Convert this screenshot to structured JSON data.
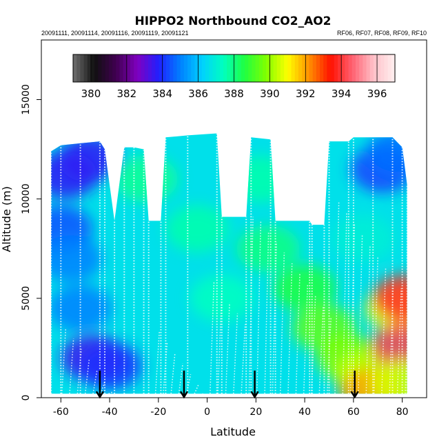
{
  "chart_data": {
    "type": "heatmap",
    "title": "HIPPO2 Northbound CO2_AO2",
    "subtitle_left": "20091111, 20091114, 20091116, 20091119, 20091121",
    "subtitle_right": "RF06, RF07, RF08, RF09, RF10",
    "xlabel": "Latitude",
    "ylabel": "Altitude (m)",
    "xlim": [
      -68,
      90
    ],
    "ylim": [
      0,
      18000
    ],
    "x_ticks": [
      "-60",
      "-40",
      "-20",
      "0",
      "20",
      "40",
      "60",
      "80"
    ],
    "x_tick_values": [
      -60,
      -40,
      -20,
      0,
      20,
      40,
      60,
      80
    ],
    "y_ticks": [
      "0",
      "5000",
      "10000",
      "15000"
    ],
    "y_tick_values": [
      0,
      5000,
      10000,
      15000
    ],
    "colorbar": {
      "min": 379,
      "max": 397,
      "ticks": [
        "380",
        "382",
        "384",
        "386",
        "388",
        "390",
        "392",
        "394",
        "396"
      ],
      "tick_values": [
        380,
        382,
        384,
        386,
        388,
        390,
        392,
        394,
        396
      ],
      "colors": [
        "#707070",
        "#101010",
        "#400050",
        "#8000c0",
        "#2020ff",
        "#0080ff",
        "#00d0ff",
        "#00ffc0",
        "#20ff40",
        "#80ff00",
        "#ffff00",
        "#ff9000",
        "#ff1000",
        "#ff6070",
        "#ffc0c8",
        "#fff0f0"
      ]
    },
    "flight_markers_latitude": [
      -44,
      -9.5,
      19.5,
      60.5
    ],
    "curtain_top_profile": [
      [
        -64,
        12400
      ],
      [
        -60,
        12700
      ],
      [
        -52,
        12800
      ],
      [
        -44,
        12900
      ],
      [
        -42,
        12500
      ],
      [
        -38,
        8900
      ],
      [
        -34,
        12600
      ],
      [
        -30,
        12600
      ],
      [
        -26,
        12500
      ],
      [
        -24,
        8900
      ],
      [
        -19,
        8900
      ],
      [
        -17,
        13100
      ],
      [
        -8,
        13200
      ],
      [
        4,
        13300
      ],
      [
        6,
        9100
      ],
      [
        16,
        9100
      ],
      [
        18,
        13100
      ],
      [
        26,
        13000
      ],
      [
        28,
        8900
      ],
      [
        42,
        8900
      ],
      [
        43,
        8700
      ],
      [
        48,
        8700
      ],
      [
        50,
        12900
      ],
      [
        58,
        12900
      ],
      [
        60,
        13100
      ],
      [
        68,
        13100
      ],
      [
        76,
        13100
      ],
      [
        80,
        12600
      ],
      [
        82,
        10700
      ]
    ],
    "patches": [
      {
        "lat": -58,
        "alt": 11200,
        "value": 383.6
      },
      {
        "lat": -48,
        "alt": 12000,
        "value": 383.6
      },
      {
        "lat": -60,
        "alt": 8500,
        "value": 384.4
      },
      {
        "lat": -56,
        "alt": 7000,
        "value": 385.0
      },
      {
        "lat": -47,
        "alt": 2000,
        "value": 383.4
      },
      {
        "lat": -40,
        "alt": 1600,
        "value": 384.0
      },
      {
        "lat": -52,
        "alt": 4500,
        "value": 385.0
      },
      {
        "lat": 72,
        "alt": 11500,
        "value": 384.2
      },
      {
        "lat": 78,
        "alt": 12300,
        "value": 384.8
      },
      {
        "lat": -4,
        "alt": 8500,
        "value": 387.6
      },
      {
        "lat": 6,
        "alt": 5000,
        "value": 387.4
      },
      {
        "lat": 25,
        "alt": 7500,
        "value": 388.0
      },
      {
        "lat": 40,
        "alt": 5500,
        "value": 388.6
      },
      {
        "lat": 48,
        "alt": 3500,
        "value": 389.4
      },
      {
        "lat": 58,
        "alt": 2000,
        "value": 389.8
      },
      {
        "lat": 65,
        "alt": 1200,
        "value": 390.4
      },
      {
        "lat": 67,
        "alt": 300,
        "value": 392.0
      },
      {
        "lat": 78,
        "alt": 4500,
        "value": 391.0
      },
      {
        "lat": 81,
        "alt": 5000,
        "value": 393.8
      },
      {
        "lat": 80,
        "alt": 2600,
        "value": 394.2
      },
      {
        "lat": 80,
        "alt": 700,
        "value": 390.6
      },
      {
        "lat": -25,
        "alt": 11000,
        "value": 387.8
      },
      {
        "lat": 22,
        "alt": 11000,
        "value": 387.6
      },
      {
        "lat": 64,
        "alt": 8000,
        "value": 387.0
      }
    ]
  }
}
